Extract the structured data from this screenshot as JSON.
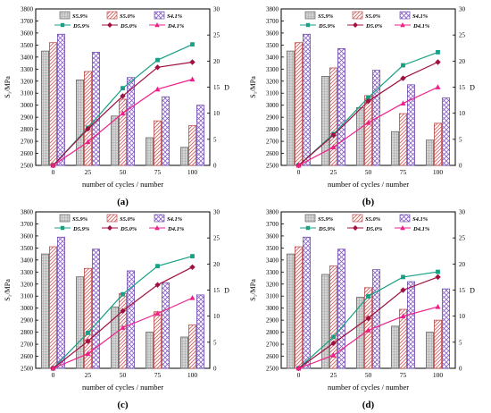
{
  "chart_data": [
    {
      "type": "bar",
      "panel_label": "(a)",
      "xlabel": "number of cycles / number",
      "ylabel": "S₁/MPa",
      "y2label": "D",
      "categories": [
        "0",
        "25",
        "50",
        "75",
        "100"
      ],
      "ylim": [
        2500,
        3800
      ],
      "y_ticks": [
        "2500",
        "2600",
        "2700",
        "2800",
        "2900",
        "3000",
        "3100",
        "3200",
        "3300",
        "3400",
        "3500",
        "3600",
        "3700",
        "3800"
      ],
      "y2lim": [
        0,
        30
      ],
      "y2_ticks": [
        "0",
        "5",
        "10",
        "15",
        "20",
        "25",
        "30"
      ],
      "legend_position": "top",
      "series": [
        {
          "name": "S5.9%",
          "kind": "bar",
          "color": "#c8c8c8",
          "pattern": "grid",
          "values": [
            3450,
            3210,
            2910,
            2730,
            2650
          ]
        },
        {
          "name": "S5.0%",
          "kind": "bar",
          "color": "#e07070",
          "pattern": "diag",
          "values": [
            3520,
            3280,
            3050,
            2870,
            2830
          ]
        },
        {
          "name": "S4.1%",
          "kind": "bar",
          "color": "#8c64c8",
          "pattern": "cross",
          "values": [
            3590,
            3440,
            3230,
            3070,
            3000
          ]
        },
        {
          "name": "D5.9%",
          "kind": "line",
          "axis": "right",
          "color": "#17a085",
          "marker": "square",
          "values": [
            0,
            7.2,
            14.8,
            20.2,
            23.2
          ]
        },
        {
          "name": "D5.0%",
          "kind": "line",
          "axis": "right",
          "color": "#a01040",
          "marker": "diamond",
          "values": [
            0,
            7.0,
            13.3,
            18.8,
            19.8
          ]
        },
        {
          "name": "D4.1%",
          "kind": "line",
          "axis": "right",
          "color": "#f0208a",
          "marker": "triangle",
          "values": [
            0,
            4.5,
            10.0,
            14.6,
            16.5
          ]
        }
      ]
    },
    {
      "type": "bar",
      "panel_label": "(b)",
      "xlabel": "number of cycles / number",
      "ylabel": "S₁/MPa",
      "y2label": "D",
      "categories": [
        "0",
        "25",
        "50",
        "75",
        "100"
      ],
      "ylim": [
        2500,
        3800
      ],
      "y_ticks": [
        "2500",
        "2600",
        "2700",
        "2800",
        "2900",
        "3000",
        "3100",
        "3200",
        "3300",
        "3400",
        "3500",
        "3600",
        "3700",
        "3800"
      ],
      "y2lim": [
        0,
        30
      ],
      "y2_ticks": [
        "0",
        "5",
        "10",
        "15",
        "20",
        "25",
        "30"
      ],
      "legend_position": "top",
      "series": [
        {
          "name": "S5.9%",
          "kind": "bar",
          "color": "#c8c8c8",
          "pattern": "grid",
          "values": [
            3450,
            3240,
            2980,
            2780,
            2710
          ]
        },
        {
          "name": "S5.0%",
          "kind": "bar",
          "color": "#e07070",
          "pattern": "diag",
          "values": [
            3520,
            3310,
            3080,
            2930,
            2850
          ]
        },
        {
          "name": "S4.1%",
          "kind": "bar",
          "color": "#8c64c8",
          "pattern": "cross",
          "values": [
            3590,
            3470,
            3290,
            3170,
            3060
          ]
        },
        {
          "name": "D5.9%",
          "kind": "line",
          "axis": "right",
          "color": "#17a085",
          "marker": "square",
          "values": [
            0,
            6.0,
            13.0,
            19.2,
            21.7
          ]
        },
        {
          "name": "D5.0%",
          "kind": "line",
          "axis": "right",
          "color": "#a01040",
          "marker": "diamond",
          "values": [
            0,
            5.8,
            12.3,
            16.7,
            19.8
          ]
        },
        {
          "name": "D4.1%",
          "kind": "line",
          "axis": "right",
          "color": "#f0208a",
          "marker": "triangle",
          "values": [
            0,
            3.5,
            8.2,
            11.9,
            15.0
          ]
        }
      ]
    },
    {
      "type": "bar",
      "panel_label": "(c)",
      "xlabel": "number of cycles / number",
      "ylabel": "S₁/MPa",
      "y2label": "D",
      "categories": [
        "0",
        "25",
        "50",
        "75",
        "100"
      ],
      "ylim": [
        2500,
        3800
      ],
      "y_ticks": [
        "2500",
        "2600",
        "2700",
        "2800",
        "2900",
        "3000",
        "3100",
        "3200",
        "3300",
        "3400",
        "3500",
        "3600",
        "3700",
        "3800"
      ],
      "y2lim": [
        0,
        30
      ],
      "y2_ticks": [
        "0",
        "5",
        "10",
        "15",
        "20",
        "25",
        "30"
      ],
      "legend_position": "top",
      "series": [
        {
          "name": "S5.9%",
          "kind": "bar",
          "color": "#c8c8c8",
          "pattern": "grid",
          "values": [
            3450,
            3260,
            3010,
            2800,
            2760
          ]
        },
        {
          "name": "S5.0%",
          "kind": "bar",
          "color": "#e07070",
          "pattern": "diag",
          "values": [
            3510,
            3330,
            3120,
            2970,
            2860
          ]
        },
        {
          "name": "S4.1%",
          "kind": "bar",
          "color": "#8c64c8",
          "pattern": "cross",
          "values": [
            3590,
            3490,
            3310,
            3210,
            3110
          ]
        },
        {
          "name": "D5.9%",
          "kind": "line",
          "axis": "right",
          "color": "#17a085",
          "marker": "square",
          "values": [
            0,
            6.8,
            14.2,
            19.6,
            21.5
          ]
        },
        {
          "name": "D5.0%",
          "kind": "line",
          "axis": "right",
          "color": "#a01040",
          "marker": "diamond",
          "values": [
            0,
            5.2,
            11.0,
            16.0,
            19.4
          ]
        },
        {
          "name": "D4.1%",
          "kind": "line",
          "axis": "right",
          "color": "#f0208a",
          "marker": "triangle",
          "values": [
            0,
            2.8,
            7.8,
            10.5,
            13.5
          ]
        }
      ]
    },
    {
      "type": "bar",
      "panel_label": "(d)",
      "xlabel": "number of cycles / number",
      "ylabel": "S₁/MPa",
      "y2label": "D",
      "categories": [
        "0",
        "25",
        "50",
        "75",
        "100"
      ],
      "ylim": [
        2500,
        3800
      ],
      "y_ticks": [
        "2500",
        "2600",
        "2700",
        "2800",
        "2900",
        "3000",
        "3100",
        "3200",
        "3300",
        "3400",
        "3500",
        "3600",
        "3700",
        "3800"
      ],
      "y2lim": [
        0,
        30
      ],
      "y2_ticks": [
        "0",
        "5",
        "10",
        "15",
        "20",
        "25",
        "30"
      ],
      "legend_position": "top",
      "series": [
        {
          "name": "S5.9%",
          "kind": "bar",
          "color": "#c8c8c8",
          "pattern": "grid",
          "values": [
            3450,
            3280,
            3090,
            2850,
            2800
          ]
        },
        {
          "name": "S5.0%",
          "kind": "bar",
          "color": "#e07070",
          "pattern": "diag",
          "values": [
            3510,
            3350,
            3170,
            2990,
            2900
          ]
        },
        {
          "name": "S4.1%",
          "kind": "bar",
          "color": "#8c64c8",
          "pattern": "cross",
          "values": [
            3590,
            3490,
            3320,
            3220,
            3160
          ]
        },
        {
          "name": "D5.9%",
          "kind": "line",
          "axis": "right",
          "color": "#17a085",
          "marker": "square",
          "values": [
            0,
            6.0,
            13.8,
            17.5,
            18.5
          ]
        },
        {
          "name": "D5.0%",
          "kind": "line",
          "axis": "right",
          "color": "#a01040",
          "marker": "diamond",
          "values": [
            0,
            4.8,
            9.6,
            15.0,
            17.5
          ]
        },
        {
          "name": "D4.1%",
          "kind": "line",
          "axis": "right",
          "color": "#f0208a",
          "marker": "triangle",
          "values": [
            0,
            2.5,
            7.3,
            10.0,
            11.8
          ]
        }
      ]
    }
  ]
}
